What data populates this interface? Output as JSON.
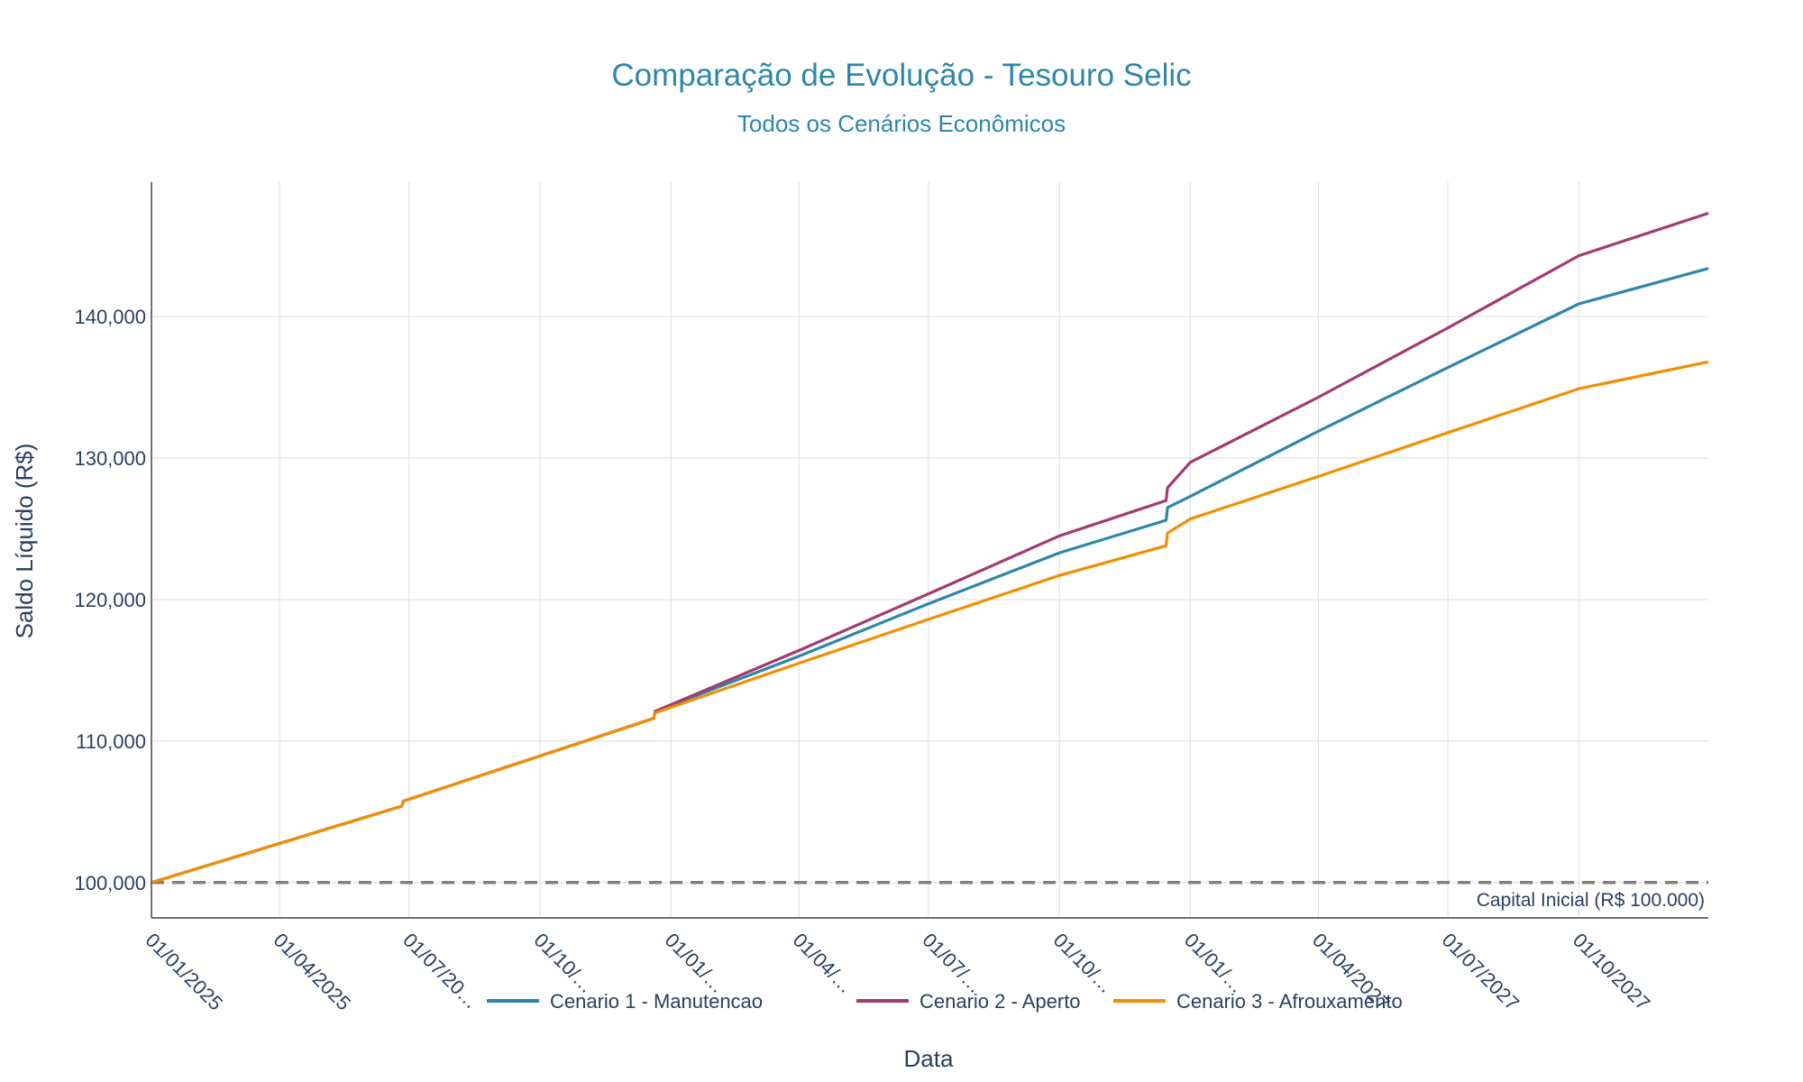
{
  "chart_data": {
    "type": "line",
    "title": "Comparação de Evolução - Tesouro Selic",
    "subtitle": "Todos os Cenários Econômicos",
    "xlabel": "Data",
    "ylabel": "Saldo Líquido (R$)",
    "xlim": [
      "2025-01-01",
      "2027-12-31"
    ],
    "ylim": [
      97500,
      149500
    ],
    "y_ticks": [
      100000,
      110000,
      120000,
      130000,
      140000
    ],
    "y_tick_labels": [
      "100,000",
      "110,000",
      "120,000",
      "130,000",
      "140,000"
    ],
    "x_ticks": [
      "2025-01-01",
      "2025-04-01",
      "2025-07-01",
      "2025-10-01",
      "2026-01-01",
      "2026-04-01",
      "2026-07-01",
      "2026-10-01",
      "2027-01-01",
      "2027-04-01",
      "2027-07-01",
      "2027-10-01"
    ],
    "x_tick_labels": [
      "01/01/2025",
      "01/04/2025",
      "01/07/20…",
      "01/10/…",
      "01/01/…",
      "01/04/…",
      "01/07/…",
      "01/10/…",
      "01/01/…",
      "01/04/2027",
      "01/07/2027",
      "01/10/2027"
    ],
    "grid": true,
    "legend_position": "bottom-center",
    "series": [
      {
        "name": "Cenario 1 - Manutencao",
        "color": "#2E86AB",
        "x": [
          "2025-01-01",
          "2025-06-26",
          "2025-06-27",
          "2025-12-20",
          "2025-12-21",
          "2026-04-01",
          "2026-07-01",
          "2026-10-01",
          "2026-12-15",
          "2026-12-16",
          "2027-01-01",
          "2027-04-01",
          "2027-07-01",
          "2027-10-01",
          "2027-12-31"
        ],
        "y": [
          100000,
          105400,
          105750,
          111600,
          112100,
          116000,
          119700,
          123300,
          125600,
          126500,
          127300,
          131900,
          136400,
          140900,
          143400
        ]
      },
      {
        "name": "Cenario 2 - Aperto",
        "color": "#A23B72",
        "x": [
          "2025-01-01",
          "2025-06-26",
          "2025-06-27",
          "2025-12-20",
          "2025-12-21",
          "2026-04-01",
          "2026-07-01",
          "2026-10-01",
          "2026-12-15",
          "2026-12-16",
          "2027-01-01",
          "2027-04-01",
          "2027-07-01",
          "2027-10-01",
          "2027-12-31"
        ],
        "y": [
          100000,
          105400,
          105750,
          111600,
          112100,
          116400,
          120400,
          124500,
          127000,
          127900,
          129700,
          134300,
          139200,
          144300,
          147300
        ]
      },
      {
        "name": "Cenario 3 - Afrouxamento",
        "color": "#F18F01",
        "x": [
          "2025-01-01",
          "2025-06-26",
          "2025-06-27",
          "2025-12-20",
          "2025-12-21",
          "2026-04-01",
          "2026-07-01",
          "2026-10-01",
          "2026-12-15",
          "2026-12-16",
          "2027-01-01",
          "2027-04-01",
          "2027-07-01",
          "2027-10-01",
          "2027-12-31"
        ],
        "y": [
          100000,
          105400,
          105750,
          111600,
          112000,
          115500,
          118600,
          121700,
          123800,
          124700,
          125700,
          128700,
          131800,
          134900,
          136800
        ]
      }
    ],
    "reference_line": {
      "y": 100000,
      "style": "dashed",
      "color": "#808080",
      "label": "Capital Inicial (R$ 100.000)"
    }
  }
}
